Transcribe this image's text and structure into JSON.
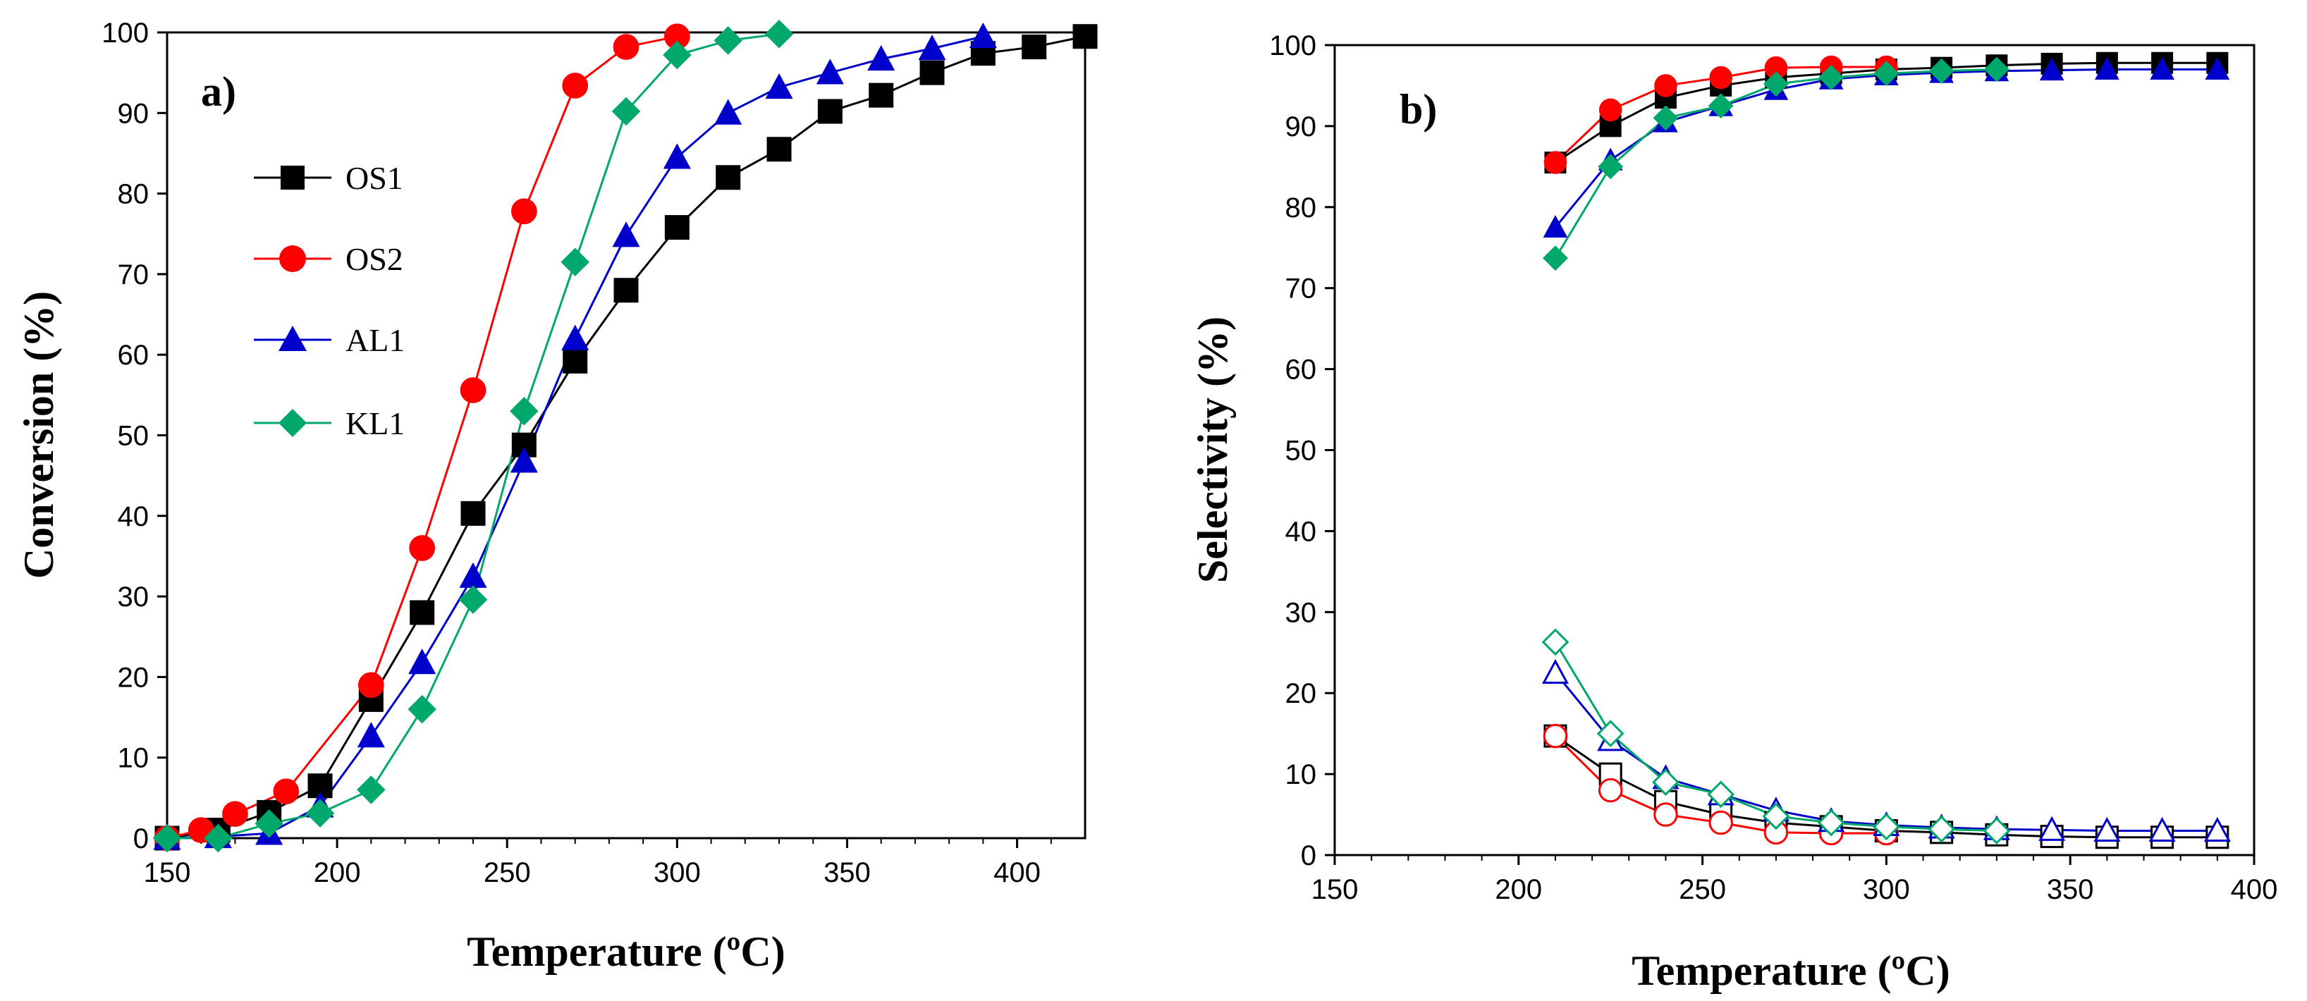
{
  "chart_data": [
    {
      "type": "line",
      "panel_label": "a)",
      "xlabel": "Temperature (ºC)",
      "ylabel": "Conversion (%)",
      "xlim": [
        150,
        420
      ],
      "ylim": [
        0,
        100
      ],
      "xticks": [
        150,
        200,
        250,
        300,
        350,
        400
      ],
      "yticks": [
        0,
        10,
        20,
        30,
        40,
        50,
        60,
        70,
        80,
        90,
        100
      ],
      "legend_position": "left",
      "series": [
        {
          "name": "OS1",
          "color": "#000000",
          "marker": "square",
          "filled": true,
          "x": [
            150,
            165,
            180,
            195,
            210,
            225,
            240,
            255,
            270,
            285,
            300,
            315,
            330,
            345,
            360,
            375,
            390,
            405,
            420
          ],
          "y": [
            0,
            1,
            3.2,
            6.5,
            17.2,
            28,
            40.3,
            48.8,
            59.2,
            68,
            75.8,
            82,
            85.5,
            90.2,
            92.2,
            95,
            97.4,
            98.2,
            99.5
          ]
        },
        {
          "name": "OS2",
          "color": "#ff0000",
          "marker": "circle",
          "filled": true,
          "x": [
            150,
            160,
            170,
            185,
            210,
            225,
            240,
            255,
            270,
            285,
            300
          ],
          "y": [
            0,
            1,
            3,
            5.8,
            19,
            36,
            55.6,
            77.8,
            93.4,
            98.2,
            99.5
          ]
        },
        {
          "name": "AL1",
          "color": "#0000cc",
          "marker": "triangle",
          "filled": true,
          "x": [
            150,
            165,
            180,
            195,
            210,
            225,
            240,
            255,
            270,
            285,
            300,
            315,
            330,
            345,
            360,
            375,
            390
          ],
          "y": [
            0,
            0.2,
            0.6,
            4,
            12.7,
            21.8,
            32.5,
            46.8,
            62,
            74.8,
            84.5,
            90,
            93.2,
            95,
            96.7,
            98,
            99.5
          ]
        },
        {
          "name": "KL1",
          "color": "#00a86b",
          "marker": "diamond",
          "filled": true,
          "x": [
            150,
            165,
            180,
            195,
            210,
            225,
            240,
            255,
            270,
            285,
            300,
            315,
            330
          ],
          "y": [
            0,
            0,
            1.8,
            3.1,
            6,
            16,
            29.6,
            53,
            71.5,
            90.2,
            97.2,
            99,
            99.8
          ]
        }
      ]
    },
    {
      "type": "line",
      "panel_label": "b)",
      "xlabel": "Temperature (ºC)",
      "ylabel": "Selectivity  (%)",
      "xlim": [
        150,
        400
      ],
      "ylim": [
        0,
        100
      ],
      "xticks": [
        150,
        200,
        250,
        300,
        350,
        400
      ],
      "yticks": [
        0,
        10,
        20,
        30,
        40,
        50,
        60,
        70,
        80,
        90,
        100
      ],
      "series": [
        {
          "name": "OS1",
          "color": "#000000",
          "marker": "square",
          "filled": true,
          "x": [
            210,
            225,
            240,
            255,
            270,
            285,
            300,
            315,
            330,
            345,
            360,
            375,
            390
          ],
          "y": [
            85.5,
            90,
            93.5,
            95,
            96,
            96.5,
            97,
            97.2,
            97.5,
            97.7,
            97.8,
            97.8,
            97.8
          ]
        },
        {
          "name": "OS2",
          "color": "#ff0000",
          "marker": "circle",
          "filled": true,
          "x": [
            210,
            225,
            240,
            255,
            270,
            285,
            300
          ],
          "y": [
            85.5,
            92,
            95,
            96,
            97.2,
            97.3,
            97.3
          ]
        },
        {
          "name": "AL1",
          "color": "#0000cc",
          "marker": "triangle",
          "filled": true,
          "x": [
            210,
            225,
            240,
            255,
            270,
            285,
            300,
            315,
            330,
            345,
            360,
            375,
            390
          ],
          "y": [
            77.5,
            85.8,
            90.5,
            92.5,
            94.5,
            95.8,
            96.3,
            96.6,
            96.8,
            96.9,
            97,
            97,
            97
          ]
        },
        {
          "name": "KL1",
          "color": "#00a86b",
          "marker": "diamond",
          "filled": true,
          "x": [
            210,
            225,
            240,
            255,
            270,
            285,
            300,
            315,
            330
          ],
          "y": [
            73.7,
            85,
            91,
            92.5,
            95.2,
            96,
            96.5,
            96.8,
            97
          ]
        },
        {
          "name": "OS1",
          "color": "#000000",
          "marker": "square",
          "filled": false,
          "x": [
            210,
            225,
            240,
            255,
            270,
            285,
            300,
            315,
            330,
            345,
            360,
            375,
            390
          ],
          "y": [
            14.7,
            10,
            6.6,
            5,
            4,
            3.5,
            3,
            2.8,
            2.5,
            2.3,
            2.2,
            2.2,
            2.2
          ]
        },
        {
          "name": "OS2",
          "color": "#ff0000",
          "marker": "circle",
          "filled": false,
          "x": [
            210,
            225,
            240,
            255,
            270,
            285,
            300
          ],
          "y": [
            14.7,
            8,
            5,
            4,
            2.8,
            2.7,
            2.7
          ]
        },
        {
          "name": "AL1",
          "color": "#0000cc",
          "marker": "triangle",
          "filled": false,
          "x": [
            210,
            225,
            240,
            255,
            270,
            285,
            300,
            315,
            330,
            345,
            360,
            375,
            390
          ],
          "y": [
            22.5,
            14.2,
            9.5,
            7.5,
            5.5,
            4.2,
            3.7,
            3.4,
            3.2,
            3.1,
            3,
            3,
            3
          ]
        },
        {
          "name": "KL1",
          "color": "#00a86b",
          "marker": "diamond",
          "filled": false,
          "x": [
            210,
            225,
            240,
            255,
            270,
            285,
            300,
            315,
            330
          ],
          "y": [
            26.3,
            15,
            9,
            7.5,
            4.8,
            4,
            3.5,
            3.2,
            3
          ]
        }
      ]
    }
  ]
}
